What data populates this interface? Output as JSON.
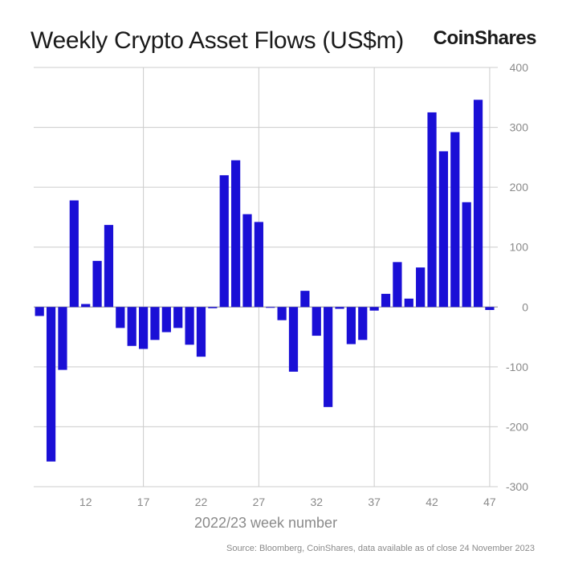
{
  "header": {
    "title": "Weekly Crypto Asset Flows (US$m)",
    "brand": "CoinShares"
  },
  "footer": {
    "source": "Source: Bloomberg, CoinShares, data available as of close 24 November 2023"
  },
  "colors": {
    "bar": "#1a0fd6",
    "grid": "#cccccc",
    "tick_text": "#8a8a8a"
  },
  "chart_data": {
    "type": "bar",
    "title": "Weekly Crypto Asset Flows (US$m)",
    "xlabel": "2022/23 week number",
    "ylabel": "",
    "ylim": [
      -300,
      400
    ],
    "yticks": [
      400,
      300,
      200,
      100,
      0,
      -100,
      -200,
      -300
    ],
    "xticks": [
      12,
      17,
      22,
      27,
      32,
      37,
      42,
      47
    ],
    "y_axis_side": "right",
    "grid": true,
    "x": [
      8,
      9,
      10,
      11,
      12,
      13,
      14,
      15,
      16,
      17,
      18,
      19,
      20,
      21,
      22,
      23,
      24,
      25,
      26,
      27,
      28,
      29,
      30,
      31,
      32,
      33,
      34,
      35,
      36,
      37,
      38,
      39,
      40,
      41,
      42,
      43,
      44,
      45,
      46,
      47
    ],
    "values": [
      -15,
      -258,
      -105,
      178,
      5,
      77,
      137,
      -35,
      -65,
      -70,
      -55,
      -42,
      -35,
      -63,
      -83,
      -2,
      220,
      245,
      155,
      142,
      -1,
      -22,
      -108,
      27,
      -48,
      -167,
      -3,
      -62,
      -55,
      -6,
      22,
      75,
      14,
      66,
      325,
      260,
      292,
      175,
      346,
      -5
    ]
  }
}
